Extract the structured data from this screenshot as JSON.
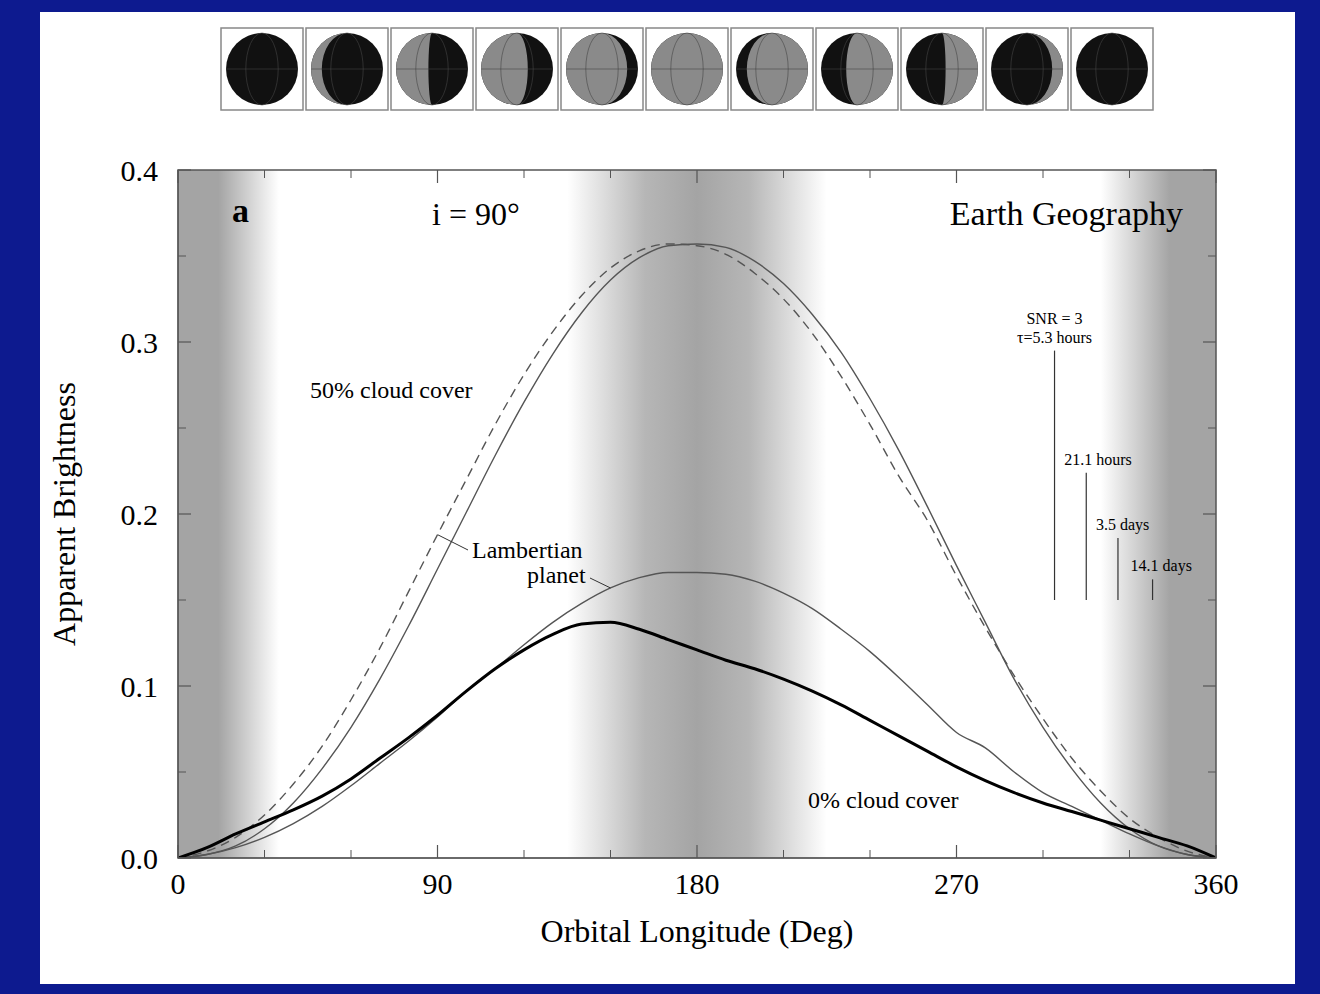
{
  "chart_data": {
    "type": "line",
    "panel_label": "a",
    "subtitle": "i = 90°",
    "title": "Earth Geography",
    "x_label": "Orbital Longitude (Deg)",
    "y_label": "Apparent Brightness",
    "x": [
      0,
      10,
      20,
      30,
      40,
      50,
      60,
      70,
      80,
      90,
      100,
      110,
      120,
      130,
      140,
      150,
      160,
      170,
      180,
      190,
      200,
      210,
      220,
      230,
      240,
      250,
      260,
      270,
      280,
      290,
      300,
      310,
      320,
      330,
      340,
      350,
      360
    ],
    "series": [
      {
        "name": "50% cloud cover",
        "color": "#555555",
        "line_style": "solid",
        "values": [
          0,
          0.002,
          0.007,
          0.017,
          0.032,
          0.052,
          0.076,
          0.104,
          0.135,
          0.168,
          0.201,
          0.234,
          0.265,
          0.293,
          0.317,
          0.336,
          0.349,
          0.356,
          0.357,
          0.355,
          0.347,
          0.334,
          0.316,
          0.294,
          0.267,
          0.237,
          0.204,
          0.17,
          0.137,
          0.104,
          0.076,
          0.052,
          0.032,
          0.017,
          0.007,
          0.002,
          0
        ]
      },
      {
        "name": "Lambertian planet",
        "color": "#555555",
        "line_style": "dashed",
        "values": [
          0,
          0.004,
          0.012,
          0.025,
          0.043,
          0.065,
          0.092,
          0.122,
          0.155,
          0.188,
          0.22,
          0.252,
          0.281,
          0.306,
          0.327,
          0.343,
          0.353,
          0.357,
          0.356,
          0.351,
          0.34,
          0.325,
          0.305,
          0.28,
          0.252,
          0.222,
          0.196,
          0.164,
          0.134,
          0.106,
          0.081,
          0.058,
          0.039,
          0.023,
          0.012,
          0.004,
          0
        ]
      },
      {
        "name": "Lambertian planet",
        "color": "#555555",
        "line_style": "solid",
        "values": [
          0,
          0.002,
          0.006,
          0.012,
          0.02,
          0.03,
          0.042,
          0.055,
          0.068,
          0.082,
          0.097,
          0.11,
          0.124,
          0.137,
          0.148,
          0.157,
          0.163,
          0.166,
          0.166,
          0.165,
          0.161,
          0.154,
          0.145,
          0.133,
          0.12,
          0.105,
          0.089,
          0.073,
          0.064,
          0.05,
          0.038,
          0.03,
          0.022,
          0.014,
          0.007,
          0.002,
          0
        ]
      },
      {
        "name": "0% cloud cover",
        "color": "#000000",
        "line_style": "solid",
        "values": [
          0,
          0.006,
          0.014,
          0.021,
          0.028,
          0.036,
          0.046,
          0.058,
          0.07,
          0.083,
          0.097,
          0.11,
          0.121,
          0.13,
          0.136,
          0.137,
          0.133,
          0.127,
          0.121,
          0.115,
          0.11,
          0.104,
          0.097,
          0.089,
          0.08,
          0.071,
          0.062,
          0.053,
          0.045,
          0.038,
          0.032,
          0.027,
          0.022,
          0.017,
          0.012,
          0.007,
          0
        ]
      }
    ],
    "xlim": [
      0,
      360
    ],
    "xticks": [
      0,
      90,
      180,
      270,
      360
    ],
    "ylim": [
      0,
      0.4
    ],
    "yticks": [
      {
        "value": 0,
        "label": "0.0"
      },
      0.1,
      0.2,
      0.3,
      0.4
    ],
    "shaded_ranges": [
      [
        0,
        35
      ],
      [
        135,
        225
      ],
      [
        320,
        360
      ]
    ],
    "snr": {
      "label": "SNR = 3",
      "bars": [
        {
          "x": 304,
          "low": 0.15,
          "high": 0.295,
          "label": "τ=5.3 hours"
        },
        {
          "x": 315,
          "low": 0.15,
          "high": 0.224,
          "label": "21.1 hours"
        },
        {
          "x": 326,
          "low": 0.15,
          "high": 0.186,
          "label": "3.5 days"
        },
        {
          "x": 338,
          "low": 0.15,
          "high": 0.162,
          "label": "14.1 days"
        }
      ]
    }
  }
}
